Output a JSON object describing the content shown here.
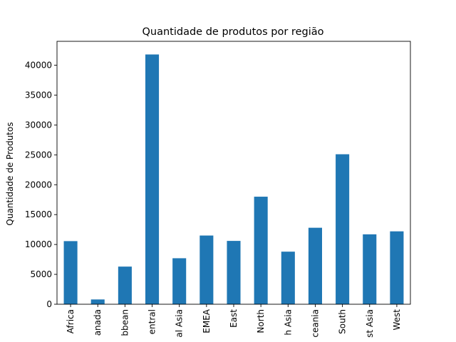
{
  "chart_data": {
    "type": "bar",
    "title": "Quantidade de produtos por região",
    "xlabel": "",
    "ylabel": "Quantidade de Produtos",
    "categories": [
      "Africa",
      "Canada",
      "Caribbean",
      "Central",
      "Central Asia",
      "EMEA",
      "East",
      "North",
      "North Asia",
      "Oceania",
      "South",
      "Southeast Asia",
      "West"
    ],
    "tick_labels_visible": [
      "Africa",
      "anada",
      "bbean",
      "entral",
      "al Asia",
      "EMEA",
      "East",
      "North",
      "h Asia",
      "ceania",
      "South",
      "st Asia",
      "West"
    ],
    "values": [
      10564,
      800,
      6300,
      41800,
      7700,
      11500,
      10600,
      18000,
      8800,
      12800,
      25100,
      11700,
      12200
    ],
    "ylim": [
      0,
      44000
    ],
    "yticks": [
      0,
      5000,
      10000,
      15000,
      20000,
      25000,
      30000,
      35000,
      40000
    ],
    "bar_color": "#1f77b4",
    "grid": false,
    "legend": "none"
  }
}
